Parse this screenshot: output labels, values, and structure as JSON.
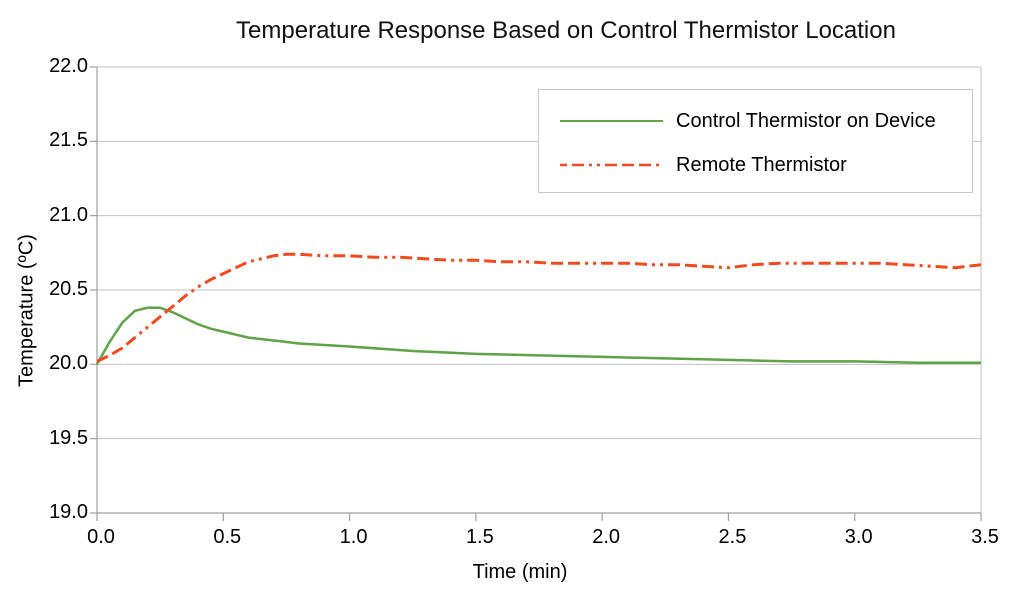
{
  "chart_data": {
    "type": "line",
    "title": "Temperature Response Based on Control Thermistor Location",
    "xlabel": "Time (min)",
    "ylabel": "Temperature (ºC)",
    "xlim": [
      0,
      3.5
    ],
    "ylim": [
      19.0,
      22.0
    ],
    "x_ticks": [
      "0.0",
      "0.5",
      "1.0",
      "1.5",
      "2.0",
      "2.5",
      "3.0",
      "3.5"
    ],
    "y_ticks": [
      "19.0",
      "19.5",
      "20.0",
      "20.5",
      "21.0",
      "21.5",
      "22.0"
    ],
    "grid": "horizontal-only",
    "legend_position": "top-right-inside",
    "colors": {
      "background": "#ffffff",
      "grid": "#c2c2c2",
      "axis": "#9f9f9f",
      "text": "#000000",
      "legend_border": "#c9c9c9",
      "series_green": "#5ea345",
      "series_red": "#f3491f"
    },
    "series": [
      {
        "name": "Control Thermistor on Device",
        "color": "#5ea345",
        "line_style": "solid",
        "x": [
          0.0,
          0.05,
          0.1,
          0.15,
          0.2,
          0.25,
          0.3,
          0.35,
          0.4,
          0.45,
          0.5,
          0.6,
          0.7,
          0.8,
          0.9,
          1.0,
          1.25,
          1.5,
          1.75,
          2.0,
          2.25,
          2.5,
          2.75,
          3.0,
          3.25,
          3.5
        ],
        "y": [
          20.0,
          20.15,
          20.28,
          20.36,
          20.38,
          20.38,
          20.35,
          20.31,
          20.27,
          20.24,
          20.22,
          20.18,
          20.16,
          20.14,
          20.13,
          20.12,
          20.09,
          20.07,
          20.06,
          20.05,
          20.04,
          20.03,
          20.02,
          20.02,
          20.01,
          20.01
        ]
      },
      {
        "name": "Remote Thermistor",
        "color": "#f3491f",
        "line_style": "dash-dot-dot",
        "x": [
          0.0,
          0.05,
          0.1,
          0.15,
          0.2,
          0.25,
          0.3,
          0.35,
          0.4,
          0.45,
          0.5,
          0.55,
          0.6,
          0.65,
          0.7,
          0.75,
          0.8,
          0.9,
          1.0,
          1.1,
          1.2,
          1.3,
          1.4,
          1.5,
          1.6,
          1.7,
          1.8,
          1.9,
          2.0,
          2.1,
          2.2,
          2.3,
          2.4,
          2.5,
          2.6,
          2.7,
          2.8,
          2.9,
          3.0,
          3.1,
          3.2,
          3.3,
          3.4,
          3.5
        ],
        "y": [
          20.02,
          20.06,
          20.11,
          20.18,
          20.25,
          20.32,
          20.39,
          20.46,
          20.52,
          20.57,
          20.61,
          20.65,
          20.69,
          20.71,
          20.73,
          20.74,
          20.74,
          20.73,
          20.73,
          20.72,
          20.72,
          20.71,
          20.7,
          20.7,
          20.69,
          20.69,
          20.68,
          20.68,
          20.68,
          20.68,
          20.67,
          20.67,
          20.66,
          20.65,
          20.67,
          20.68,
          20.68,
          20.68,
          20.68,
          20.68,
          20.67,
          20.66,
          20.65,
          20.67
        ]
      }
    ]
  }
}
